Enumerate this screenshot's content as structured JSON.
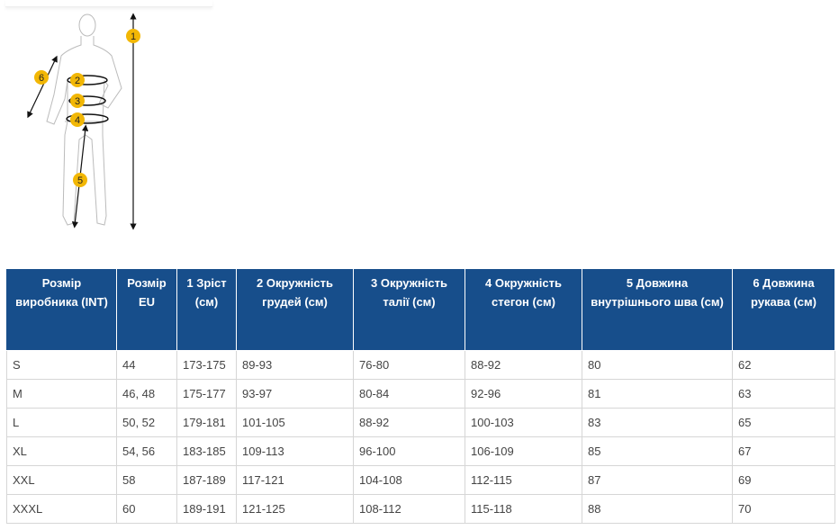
{
  "diagram": {
    "markers": [
      "1",
      "2",
      "3",
      "4",
      "5",
      "6"
    ],
    "accent": "#f2b705"
  },
  "table": {
    "header_color": "#174e8b",
    "headers": [
      "Розмір виробника (INT)",
      "Розмір EU",
      "1 Зріст (см)",
      "2 Окружність грудей (см)",
      "3 Окружність талії (см)",
      "4 Окружність стегон (см)",
      "5 Довжина внутрішнього шва (см)",
      "6 Довжина рукава (см)"
    ],
    "rows": [
      [
        "S",
        "44",
        "173-175",
        "89-93",
        "76-80",
        "88-92",
        "80",
        "62"
      ],
      [
        "M",
        "46, 48",
        "175-177",
        "93-97",
        "80-84",
        "92-96",
        "81",
        "63"
      ],
      [
        "L",
        "50, 52",
        "179-181",
        "101-105",
        "88-92",
        "100-103",
        "83",
        "65"
      ],
      [
        "XL",
        "54, 56",
        "183-185",
        "109-113",
        "96-100",
        "106-109",
        "85",
        "67"
      ],
      [
        "XXL",
        "58",
        "187-189",
        "117-121",
        "104-108",
        "112-115",
        "87",
        "69"
      ],
      [
        "XXXL",
        "60",
        "189-191",
        "121-125",
        "108-112",
        "115-118",
        "88",
        "70"
      ]
    ]
  }
}
